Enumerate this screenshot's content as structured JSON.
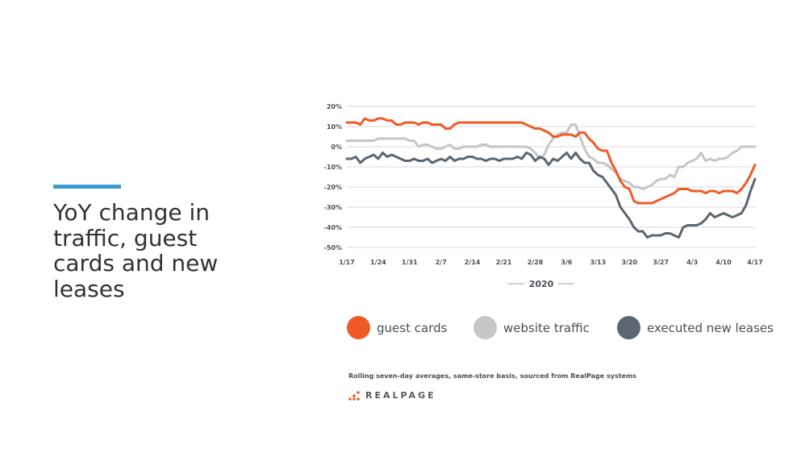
{
  "slide": {
    "title": "YoY change in traffic, guest cards and new leases",
    "accent_color": "#3b9bd1"
  },
  "footnote": "Rolling seven-day averages, same-store basis, sourced from RealPage systems",
  "logo": {
    "text": "REALPAGE",
    "icon": "realpage-dots-icon",
    "dot_color": "#f05a28"
  },
  "chart_data": {
    "type": "line",
    "xlabel": "2020",
    "ylabel": "",
    "ylim": [
      -50,
      20
    ],
    "yticks": [
      "20%",
      "10%",
      "0%",
      "-10%",
      "-20%",
      "-30%",
      "-40%",
      "-50%"
    ],
    "ytick_values": [
      20,
      10,
      0,
      -10,
      -20,
      -30,
      -40,
      -50
    ],
    "xlim": [
      0,
      91
    ],
    "xticks": [
      "1/17",
      "1/24",
      "1/31",
      "2/7",
      "2/14",
      "2/21",
      "2/28",
      "3/6",
      "3/13",
      "3/20",
      "3/27",
      "4/3",
      "4/10",
      "4/17"
    ],
    "xtick_values": [
      0,
      7,
      14,
      21,
      28,
      35,
      42,
      49,
      56,
      63,
      70,
      77,
      84,
      91
    ],
    "grid": true,
    "legend_position": "bottom",
    "series": [
      {
        "name": "guest cards",
        "color": "#f05a28",
        "values": [
          12,
          12,
          12,
          11,
          14,
          13,
          13,
          14,
          14,
          13,
          13,
          11,
          11,
          12,
          12,
          12,
          11,
          12,
          12,
          11,
          11,
          11,
          9,
          9,
          11,
          12,
          12,
          12,
          12,
          12,
          12,
          12,
          12,
          12,
          12,
          12,
          12,
          12,
          12,
          12,
          11,
          10,
          9,
          9,
          8,
          7,
          5,
          5,
          6,
          6,
          6,
          5,
          7,
          7,
          4,
          2,
          -1,
          -2,
          -2,
          -8,
          -12,
          -17,
          -20,
          -21,
          -27,
          -28,
          -28,
          -28,
          -28,
          -27,
          -26,
          -25,
          -24,
          -23,
          -21,
          -21,
          -21,
          -22,
          -22,
          -22,
          -23,
          -22,
          -22,
          -23,
          -22,
          -22,
          -22,
          -23,
          -21,
          -18,
          -14,
          -9
        ]
      },
      {
        "name": "website traffic",
        "color": "#c4c6c8",
        "values": [
          3,
          3,
          3,
          3,
          3,
          3,
          3,
          4,
          4,
          4,
          4,
          4,
          4,
          4,
          3,
          3,
          0,
          1,
          1,
          0,
          -1,
          -1,
          0,
          1,
          -1,
          -1,
          0,
          0,
          0,
          0,
          1,
          1,
          0,
          0,
          0,
          0,
          0,
          0,
          0,
          0,
          0,
          -1,
          -3,
          -6,
          -4,
          1,
          4,
          6,
          7,
          7,
          11,
          11,
          5,
          -1,
          -5,
          -6,
          -8,
          -8,
          -9,
          -11,
          -13,
          -16,
          -17,
          -18,
          -20,
          -20,
          -21,
          -20,
          -19,
          -17,
          -16,
          -16,
          -14,
          -15,
          -10,
          -10,
          -8,
          -7,
          -6,
          -3,
          -7,
          -6,
          -7,
          -6,
          -6,
          -5,
          -3,
          -2,
          0,
          0,
          0,
          0
        ]
      },
      {
        "name": "executed new leases",
        "color": "#5c6670",
        "values": [
          -6,
          -6,
          -5,
          -8,
          -6,
          -5,
          -4,
          -6,
          -3,
          -5,
          -4,
          -5,
          -6,
          -7,
          -7,
          -6,
          -7,
          -7,
          -6,
          -8,
          -7,
          -6,
          -7,
          -5,
          -7,
          -6,
          -6,
          -5,
          -5,
          -6,
          -6,
          -7,
          -6,
          -6,
          -7,
          -6,
          -6,
          -6,
          -5,
          -6,
          -3,
          -4,
          -7,
          -5,
          -6,
          -9,
          -6,
          -7,
          -5,
          -3,
          -6,
          -3,
          -6,
          -8,
          -8,
          -12,
          -14,
          -15,
          -18,
          -21,
          -24,
          -30,
          -33,
          -36,
          -40,
          -42,
          -42,
          -45,
          -44,
          -44,
          -44,
          -43,
          -43,
          -44,
          -45,
          -40,
          -39,
          -39,
          -39,
          -38,
          -36,
          -33,
          -35,
          -34,
          -33,
          -34,
          -35,
          -34,
          -33,
          -29,
          -22,
          -16
        ]
      }
    ]
  }
}
